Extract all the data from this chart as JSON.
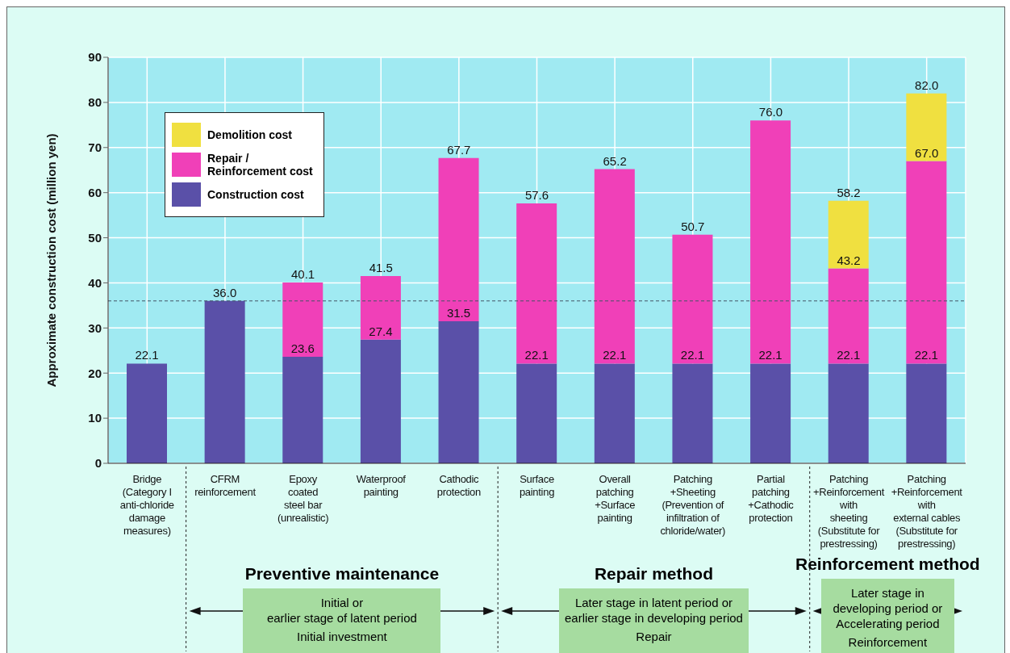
{
  "chart_data": {
    "type": "bar",
    "stacked": true,
    "ylabel": "Approximate construction cost (million yen)",
    "categories": [
      "Bridge\n(Category I\nanti-chloride\ndamage\nmeasures)",
      "CFRM\nreinforcement",
      "Epoxy\ncoated\nsteel bar\n(unrealistic)",
      "Waterproof\npainting",
      "Cathodic\nprotection",
      "Surface\npainting",
      "Overall\npatching\n+Surface\npainting",
      "Patching\n+Sheeting\n(Prevention of\ninfiltration of\nchloride/water)",
      "Partial\npatching\n+Cathodic\nprotection",
      "Patching\n+Reinforcement\nwith\nsheeting\n(Substitute for\nprestressing)",
      "Patching\n+Reinforcement\nwith\nexternal cables\n(Substitute for\nprestressing)"
    ],
    "series": [
      {
        "name": "Construction cost",
        "color": "#5a50a8",
        "values": [
          22.1,
          36.0,
          23.6,
          27.4,
          31.5,
          22.1,
          22.1,
          22.1,
          22.1,
          22.1,
          22.1
        ],
        "value_labels": [
          "22.1",
          "36.0",
          "23.6",
          "27.4",
          "31.5",
          "22.1",
          "22.1",
          "22.1",
          "22.1",
          "22.1",
          "22.1"
        ]
      },
      {
        "name": "Repair / Reinforcement cost",
        "color": "#f040b8",
        "values": [
          null,
          null,
          16.5,
          14.1,
          36.2,
          35.5,
          43.1,
          28.6,
          53.9,
          21.1,
          44.9
        ]
      },
      {
        "name": "Demolition cost",
        "color": "#f0e040",
        "values": [
          null,
          null,
          null,
          null,
          null,
          null,
          null,
          null,
          null,
          15.0,
          15.0
        ]
      }
    ],
    "totals": [
      null,
      null,
      "40.1",
      "41.5",
      "67.7",
      "57.6",
      "65.2",
      "50.7",
      "76.0",
      "58.2",
      "82.0"
    ],
    "ylim": [
      0,
      90
    ],
    "yticks": [
      0,
      10,
      20,
      30,
      40,
      50,
      60,
      70,
      80,
      90
    ],
    "grid": true,
    "legend": "top left",
    "ref_lines": [
      {
        "axis": "y",
        "value": 36.0,
        "line_style": "dashed",
        "color": "#445566"
      }
    ],
    "annotations": [
      "Preventive maintenance",
      "Initial or\nearlier stage of latent period",
      "Initial investment",
      "Repair method",
      "Later stage in latent period or\nearlier stage in developing period",
      "Repair",
      "Reinforcement method",
      "Later stage in\ndeveloping period or\nAccelerating period",
      "Reinforcement",
      {
        "text": "43.2",
        "x": "Patching\n+Reinforcement\nwith\nsheeting\n(Substitute for\nprestressing)",
        "y": 43.2
      },
      {
        "text": "67.0",
        "x": "Patching\n+Reinforcement\nwith\nexternal cables\n(Substitute for\nprestressing)",
        "y": 67.0
      }
    ]
  }
}
